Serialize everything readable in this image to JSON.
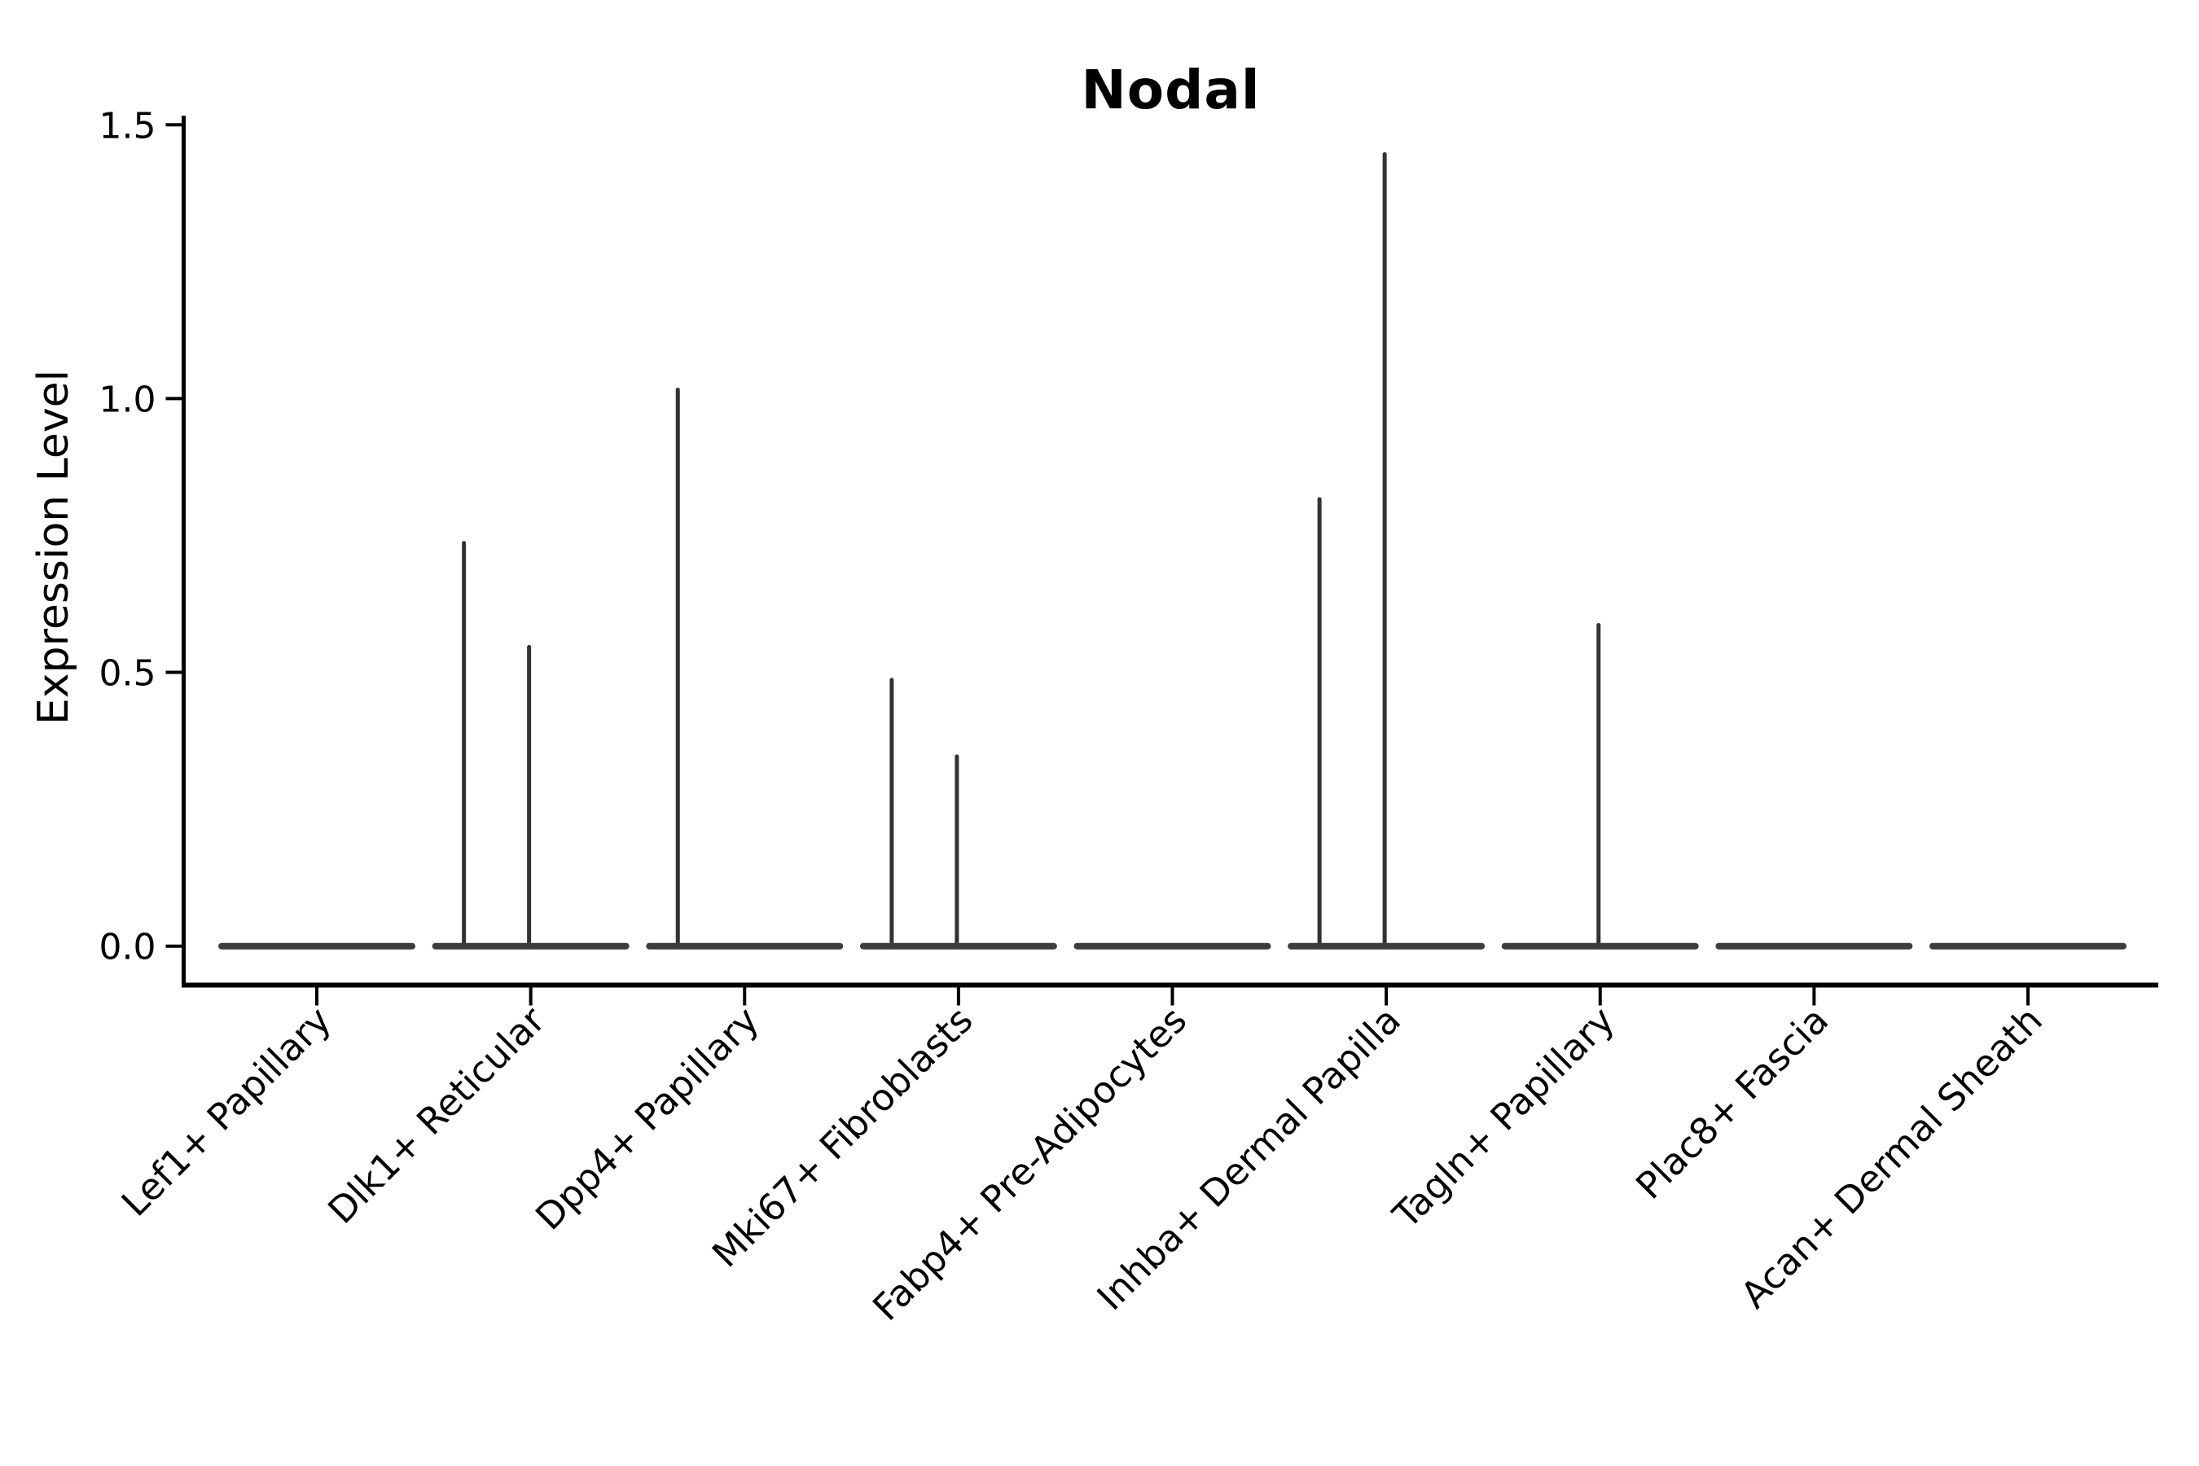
{
  "colors": {
    "background": "#ffffff",
    "axis": "#000000",
    "text": "#000000",
    "violin": "#3d3d3d",
    "spike": "#333333"
  },
  "chart_data": {
    "type": "violin",
    "title": "Nodal",
    "ylabel": "Expression Level",
    "xlabel": "",
    "ylim": [
      0,
      1.5
    ],
    "yticks": [
      0.0,
      0.5,
      1.0,
      1.5
    ],
    "ytick_labels": [
      "0.0",
      "0.5",
      "1.0",
      "1.5"
    ],
    "grid": false,
    "legend": null,
    "categories": [
      "Lef1+ Papillary",
      "Dlk1+ Reticular",
      "Dpp4+ Papillary",
      "Mki67+ Fibroblasts",
      "Fabp4+ Pre-Adipocytes",
      "Inhba+ Dermal Papilla",
      "Tagln+ Papillary",
      "Plac8+ Fascia",
      "Acan+ Dermal Sheath"
    ],
    "violins": [
      {
        "category": "Lef1+ Papillary",
        "base_value": 0.0,
        "spikes": []
      },
      {
        "category": "Dlk1+ Reticular",
        "base_value": 0.0,
        "spikes": [
          {
            "position": "left",
            "value": 0.74
          },
          {
            "position": "center",
            "value": 0.55
          }
        ]
      },
      {
        "category": "Dpp4+ Papillary",
        "base_value": 0.0,
        "spikes": [
          {
            "position": "left",
            "value": 1.02
          }
        ]
      },
      {
        "category": "Mki67+ Fibroblasts",
        "base_value": 0.0,
        "spikes": [
          {
            "position": "left",
            "value": 0.49
          },
          {
            "position": "center",
            "value": 0.35
          }
        ]
      },
      {
        "category": "Fabp4+ Pre-Adipocytes",
        "base_value": 0.0,
        "spikes": []
      },
      {
        "category": "Inhba+ Dermal Papilla",
        "base_value": 0.0,
        "spikes": [
          {
            "position": "left",
            "value": 0.82
          },
          {
            "position": "center",
            "value": 1.45
          }
        ]
      },
      {
        "category": "Tagln+ Papillary",
        "base_value": 0.0,
        "spikes": [
          {
            "position": "center",
            "value": 0.59
          }
        ]
      },
      {
        "category": "Plac8+ Fascia",
        "base_value": 0.0,
        "spikes": []
      },
      {
        "category": "Acan+ Dermal Sheath",
        "base_value": 0.0,
        "spikes": []
      }
    ]
  }
}
